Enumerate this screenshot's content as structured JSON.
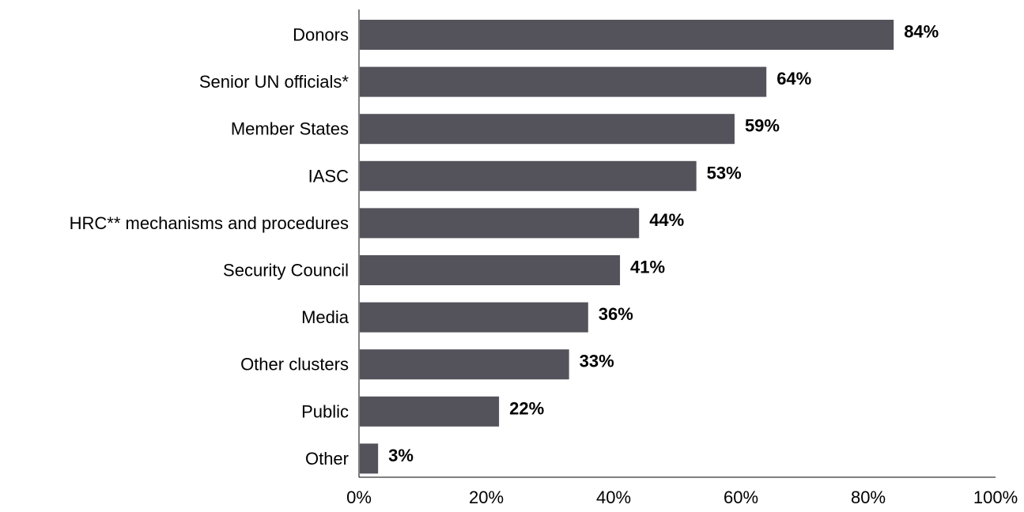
{
  "chart_data": {
    "type": "bar",
    "orientation": "horizontal",
    "categories": [
      "Donors",
      "Senior UN officials*",
      "Member States",
      "IASC",
      "HRC** mechanisms and procedures",
      "Security Council",
      "Media",
      "Other clusters",
      "Public",
      "Other"
    ],
    "values": [
      84,
      64,
      59,
      53,
      44,
      41,
      36,
      33,
      22,
      3
    ],
    "value_labels": [
      "84%",
      "64%",
      "59%",
      "53%",
      "44%",
      "41%",
      "36%",
      "33%",
      "22%",
      "3%"
    ],
    "xlim": [
      0,
      100
    ],
    "x_ticks": [
      0,
      20,
      40,
      60,
      80,
      100
    ],
    "x_tick_labels": [
      "0%",
      "20%",
      "40%",
      "60%",
      "80%",
      "100%"
    ],
    "title": "",
    "xlabel": "",
    "ylabel": "",
    "grid": false,
    "legend": "none",
    "bar_color": "#54535b"
  }
}
